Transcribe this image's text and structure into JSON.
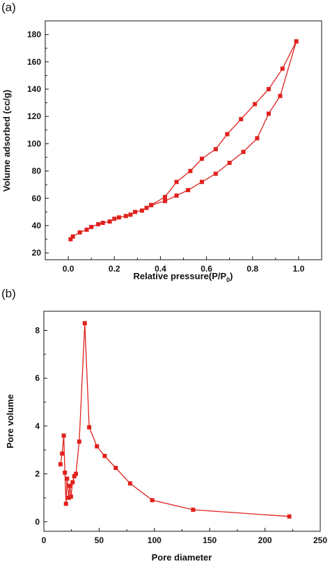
{
  "colors": {
    "series": "#e0211d",
    "axis": "#111111"
  },
  "chart_data": [
    {
      "panel": "(a)",
      "type": "line",
      "xlabel": "Relative pressure(P/P",
      "xlabel_sub": "0",
      "xlabel_close": ")",
      "ylabel": "Volume adsorbed (cc/g)",
      "xlim": [
        -0.1,
        1.1
      ],
      "ylim": [
        15,
        190
      ],
      "xticks": [
        0.0,
        0.2,
        0.4,
        0.6,
        0.8,
        1.0
      ],
      "xtick_labels": [
        "0.0",
        "0.2",
        "0.4",
        "0.6",
        "0.8",
        "1.0"
      ],
      "yticks": [
        20,
        40,
        60,
        80,
        100,
        120,
        140,
        160,
        180
      ],
      "ytick_labels": [
        "20",
        "40",
        "60",
        "80",
        "100",
        "120",
        "140",
        "160",
        "180"
      ],
      "grid": false,
      "legend": "none",
      "marker": "square",
      "series": [
        {
          "x": [
            0.01,
            0.02,
            0.05,
            0.08,
            0.1,
            0.13,
            0.15,
            0.18,
            0.2,
            0.22,
            0.25,
            0.27,
            0.29,
            0.32,
            0.34,
            0.36,
            0.42,
            0.47,
            0.52,
            0.58,
            0.64,
            0.7,
            0.76,
            0.82,
            0.87,
            0.92,
            0.99
          ],
          "y": [
            30,
            32,
            35,
            37,
            39,
            41,
            42,
            43,
            45,
            46,
            47,
            48,
            50,
            51,
            53,
            55,
            58,
            62,
            66,
            72,
            78,
            86,
            94,
            104,
            122,
            135,
            175
          ]
        },
        {
          "x": [
            0.36,
            0.42,
            0.47,
            0.53,
            0.58,
            0.64,
            0.69,
            0.75,
            0.81,
            0.87,
            0.93,
            0.99
          ],
          "y": [
            55,
            61,
            72,
            80,
            89,
            96,
            107,
            118,
            129,
            140,
            155,
            175
          ]
        }
      ]
    },
    {
      "panel": "(b)",
      "type": "line",
      "xlabel": "Pore diameter",
      "ylabel": "Pore volume",
      "xlim": [
        0,
        250
      ],
      "ylim": [
        -0.4,
        8.8
      ],
      "xticks": [
        0,
        50,
        100,
        150,
        200,
        250
      ],
      "xtick_labels": [
        "0",
        "50",
        "100",
        "150",
        "200",
        "250"
      ],
      "yticks": [
        0,
        2,
        4,
        6,
        8
      ],
      "ytick_labels": [
        "0",
        "2",
        "4",
        "6",
        "8"
      ],
      "grid": false,
      "legend": "none",
      "marker": "square",
      "series": [
        {
          "x": [
            15,
            16.5,
            18,
            19,
            20,
            21,
            22.5,
            23.5,
            24.5,
            26,
            27.5,
            29,
            32,
            37,
            41,
            48,
            55,
            65,
            78,
            98,
            135,
            222
          ],
          "y": [
            2.4,
            2.85,
            3.6,
            2.05,
            0.75,
            1.8,
            1.0,
            1.5,
            1.05,
            1.65,
            1.9,
            2.0,
            3.35,
            8.3,
            3.95,
            3.15,
            2.75,
            2.25,
            1.6,
            0.9,
            0.5,
            0.22
          ]
        }
      ]
    }
  ]
}
